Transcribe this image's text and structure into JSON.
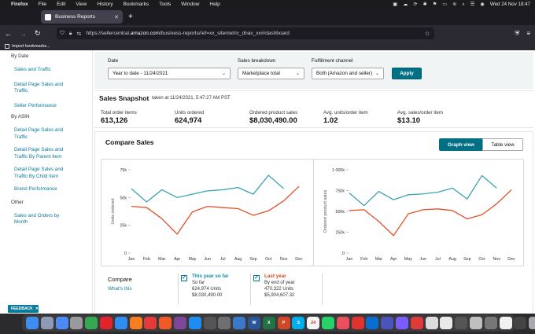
{
  "menubar": {
    "app_name": "Firefox",
    "items": [
      "File",
      "Edit",
      "View",
      "History",
      "Bookmarks",
      "Tools",
      "Window",
      "Help"
    ],
    "datetime": "Wed 24 Nov  18:47"
  },
  "browser": {
    "tab_title": "Business Reports",
    "url_prefix": "https://sellercentral.",
    "url_domain": "amazon.com",
    "url_path": "/business-reports/ref=xx_sitemetric_dnav_xx#/dashboard",
    "bookmarks_label": "Import bookmarks..."
  },
  "sidebar": {
    "groups": [
      {
        "heading": "By Date",
        "links": [
          "Sales and Traffic",
          "Detail Page Sales and Traffic",
          "Seller Performance"
        ]
      },
      {
        "heading": "By ASIN",
        "links": [
          "Detail Page Sales and Traffic",
          "Detail Page Sales and Traffic By Parent Item",
          "Detail Page Sales and Traffic By Child Item",
          "Brand Performance"
        ]
      },
      {
        "heading": "Other",
        "links": [
          "Sales and Orders by Month"
        ]
      }
    ]
  },
  "filters": {
    "date_label": "Date",
    "date_value": "Year to date - 11/24/2021",
    "breakdown_label": "Sales breakdown",
    "breakdown_value": "Marketplace total",
    "fulfillment_label": "Fulfillment channel",
    "fulfillment_value": "Both (Amazon and seller)",
    "apply_label": "Apply"
  },
  "snapshot": {
    "title": "Sales Snapshot",
    "taken_at": "taken at 11/24/2021, 5:47:27 AM PST",
    "metrics": [
      {
        "label": "Total order items",
        "value": "613,126"
      },
      {
        "label": "Units ordered",
        "value": "624,974"
      },
      {
        "label": "Ordered product sales",
        "value": "$8,030,490.00"
      },
      {
        "label": "Avg. units/order item",
        "value": "1.02"
      },
      {
        "label": "Avg. sales/order item",
        "value": "$13.10"
      }
    ]
  },
  "compare": {
    "title": "Compare Sales",
    "graph_view_label": "Graph view",
    "table_view_label": "Table view",
    "legend_title": "Compare",
    "whats_this": "What's this",
    "series_a": {
      "name": "This year so far",
      "sub1": "So far",
      "sub2": "624,974 Units",
      "sub3": "$8,030,490.00",
      "color": "#3ba3b7"
    },
    "series_b": {
      "name": "Last year",
      "sub1": "By end of year",
      "sub2": "470,322 Units",
      "sub3": "$5,904,607.32",
      "color": "#e1502a"
    }
  },
  "chart_data": [
    {
      "type": "line",
      "ylabel": "Units ordered",
      "ylim": [
        0,
        75000
      ],
      "yticks": [
        "0",
        "25k",
        "50k",
        "75k"
      ],
      "categories": [
        "Jan",
        "Feb",
        "Mar",
        "Apr",
        "May",
        "Jun",
        "Jul",
        "Aug",
        "Sep",
        "Oct",
        "Nov",
        "Dec"
      ],
      "series": [
        {
          "name": "This year so far",
          "color": "#3ba3b7",
          "values": [
            58000,
            46000,
            57000,
            50000,
            53000,
            56000,
            57000,
            59000,
            53000,
            70000,
            58000,
            null
          ]
        },
        {
          "name": "Last year",
          "color": "#e1502a",
          "values": [
            42000,
            41000,
            31000,
            17000,
            37000,
            42000,
            41000,
            40000,
            34000,
            38000,
            47000,
            60000
          ]
        }
      ]
    },
    {
      "type": "line",
      "ylabel": "Ordered product sales",
      "ylim": [
        0,
        1000000
      ],
      "yticks": [
        "0",
        "250k",
        "500k",
        "750k",
        "1 000k"
      ],
      "categories": [
        "Jan",
        "Feb",
        "Mar",
        "Apr",
        "May",
        "Jun",
        "Jul",
        "Aug",
        "Sep",
        "Oct",
        "Nov",
        "Dec"
      ],
      "series": [
        {
          "name": "This year so far",
          "color": "#3ba3b7",
          "values": [
            720000,
            570000,
            740000,
            640000,
            700000,
            710000,
            730000,
            780000,
            650000,
            930000,
            780000,
            null
          ]
        },
        {
          "name": "Last year",
          "color": "#e1502a",
          "values": [
            510000,
            520000,
            380000,
            210000,
            470000,
            520000,
            530000,
            510000,
            410000,
            460000,
            590000,
            760000
          ]
        }
      ]
    }
  ],
  "feedback_label": "FEEDBACK",
  "dock": [
    {
      "name": "finder-icon",
      "color": "#3c8ef0",
      "label": ""
    },
    {
      "name": "launchpad-icon",
      "color": "#8e9bb5",
      "label": ""
    },
    {
      "name": "mission-control-icon",
      "color": "#4c8bf5",
      "label": ""
    },
    {
      "name": "system-preferences-icon",
      "color": "#9a9a9e",
      "label": ""
    },
    {
      "name": "chrome-icon",
      "color": "#35a853",
      "label": ""
    },
    {
      "name": "opera-icon",
      "color": "#e3222a",
      "label": ""
    },
    {
      "name": "safari-icon",
      "color": "#2f8cf0",
      "label": ""
    },
    {
      "name": "firefox-icon",
      "color": "#f77d22",
      "label": ""
    },
    {
      "name": "vivaldi-icon",
      "color": "#e53a3a",
      "label": ""
    },
    {
      "name": "brave-icon",
      "color": "#f05a28",
      "label": ""
    },
    {
      "name": "tor-icon",
      "color": "#7d4698",
      "label": ""
    },
    {
      "name": "app-store-icon",
      "color": "#1e8df2",
      "label": ""
    },
    {
      "name": "preview-icon",
      "color": "#555",
      "label": ""
    },
    {
      "name": "settings-icon",
      "color": "#6e6e73",
      "label": ""
    },
    {
      "name": "migration-icon",
      "color": "#3a78c9",
      "label": ""
    },
    {
      "name": "word-icon",
      "color": "#2b579a",
      "label": "W"
    },
    {
      "name": "excel-icon",
      "color": "#217346",
      "label": "X"
    },
    {
      "name": "powerpoint-icon",
      "color": "#d24726",
      "label": "P"
    },
    {
      "name": "skype-icon",
      "color": "#00aff0",
      "label": "S"
    },
    {
      "name": "calendar-icon",
      "color": "#f5f5f5",
      "label": "24"
    },
    {
      "name": "whatsapp-icon",
      "color": "#25d366",
      "label": ""
    },
    {
      "name": "photos-icon",
      "color": "#e94f5c",
      "label": ""
    },
    {
      "name": "anydesk-icon",
      "color": "#e2322d",
      "label": ""
    },
    {
      "name": "outlook-icon",
      "color": "#0a6ed1",
      "label": ""
    },
    {
      "name": "teams-icon",
      "color": "#4b53bc",
      "label": ""
    },
    {
      "name": "messenger-icon",
      "color": "#7a5cff",
      "label": ""
    },
    {
      "name": "screen-recorder-icon",
      "color": "#e03b3b",
      "label": ""
    },
    {
      "name": "minimized-window-icon",
      "color": "#dcdcdc",
      "label": ""
    },
    {
      "name": "minimized-window-icon",
      "color": "#e9e9e9",
      "label": ""
    },
    {
      "name": "minimized-window-icon",
      "color": "#555",
      "label": ""
    },
    {
      "name": "minimized-window-icon",
      "color": "#bfbfbf",
      "label": ""
    },
    {
      "name": "minimized-window-icon",
      "color": "#777",
      "label": ""
    },
    {
      "name": "minimized-window-icon",
      "color": "#f1f1f1",
      "label": ""
    },
    {
      "name": "minimized-window-icon",
      "color": "#444",
      "label": ""
    },
    {
      "name": "trash-icon",
      "color": "#a9a9ad",
      "label": ""
    }
  ]
}
